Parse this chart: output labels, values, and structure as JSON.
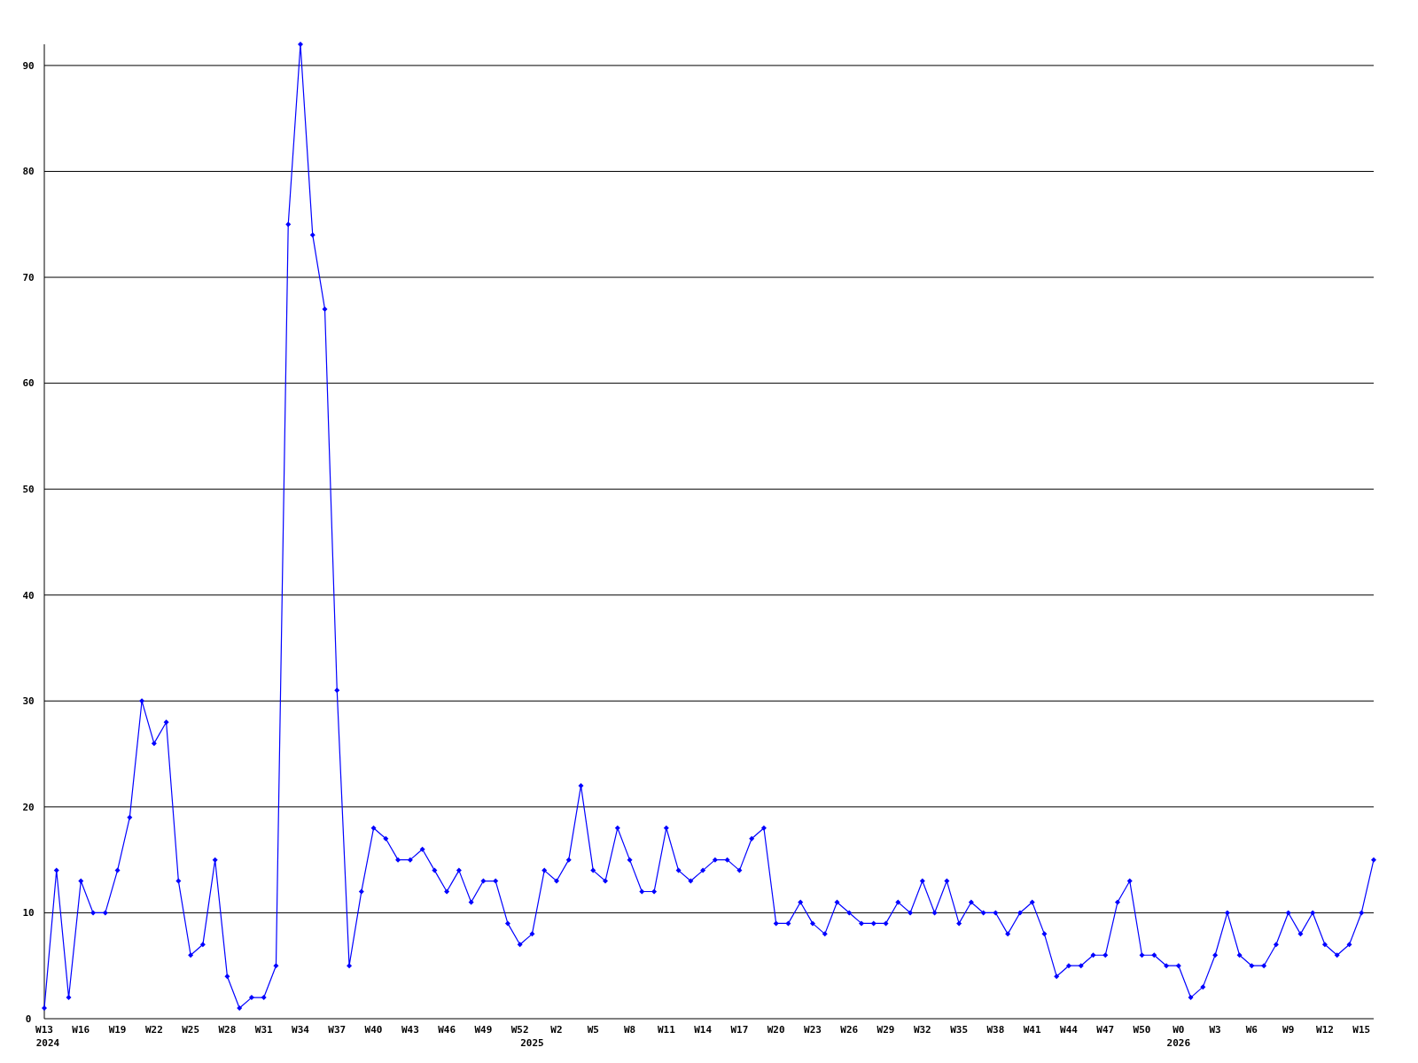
{
  "chart_data": {
    "type": "line",
    "categories": [
      "W13\n2024",
      null,
      null,
      "W16",
      null,
      null,
      "W19",
      null,
      null,
      "W22",
      null,
      null,
      "W25",
      null,
      null,
      "W28",
      null,
      null,
      "W31",
      null,
      null,
      "W34",
      null,
      null,
      "W37",
      null,
      null,
      "W40",
      null,
      null,
      "W43",
      null,
      null,
      "W46",
      null,
      null,
      "W49",
      null,
      null,
      "W52",
      "\n2025",
      null,
      "W2",
      null,
      null,
      "W5",
      null,
      null,
      "W8",
      null,
      null,
      "W11",
      null,
      null,
      "W14",
      null,
      null,
      "W17",
      null,
      null,
      "W20",
      null,
      null,
      "W23",
      null,
      null,
      "W26",
      null,
      null,
      "W29",
      null,
      null,
      "W32",
      null,
      null,
      "W35",
      null,
      null,
      "W38",
      null,
      null,
      "W41",
      null,
      null,
      "W44",
      null,
      null,
      "W47",
      null,
      null,
      "W50",
      null,
      null,
      "W0\n2026",
      null,
      null,
      "W3",
      null,
      null,
      "W6",
      null,
      null,
      "W9",
      null,
      null,
      "W12",
      null,
      null,
      "W15",
      null
    ],
    "series": [
      {
        "color": "#0000ff",
        "values": [
          1,
          14,
          2,
          13,
          10,
          10,
          14,
          19,
          30,
          26,
          28,
          13,
          6,
          7,
          15,
          4,
          1,
          2,
          2,
          5,
          75,
          92,
          74,
          67,
          31,
          5,
          12,
          18,
          17,
          15,
          15,
          16,
          14,
          12,
          14,
          11,
          13,
          13,
          9,
          7,
          8,
          14,
          13,
          15,
          22,
          14,
          13,
          18,
          15,
          12,
          12,
          18,
          14,
          13,
          14,
          15,
          15,
          14,
          17,
          18,
          9,
          9,
          11,
          9,
          8,
          11,
          10,
          9,
          9,
          9,
          11,
          10,
          13,
          10,
          13,
          9,
          11,
          10,
          10,
          8,
          10,
          11,
          8,
          4,
          5,
          5,
          6,
          6,
          11,
          13,
          6,
          6,
          5,
          5,
          2,
          3,
          6,
          10,
          6,
          5,
          5,
          7,
          10,
          8,
          10,
          7,
          6,
          7,
          10,
          15
        ]
      }
    ],
    "ylim": [
      0,
      92
    ],
    "yticks": [
      0,
      10,
      20,
      30,
      40,
      50,
      60,
      70,
      80,
      90
    ],
    "grid": "y",
    "marker": "diamond",
    "line_style": "solid"
  }
}
